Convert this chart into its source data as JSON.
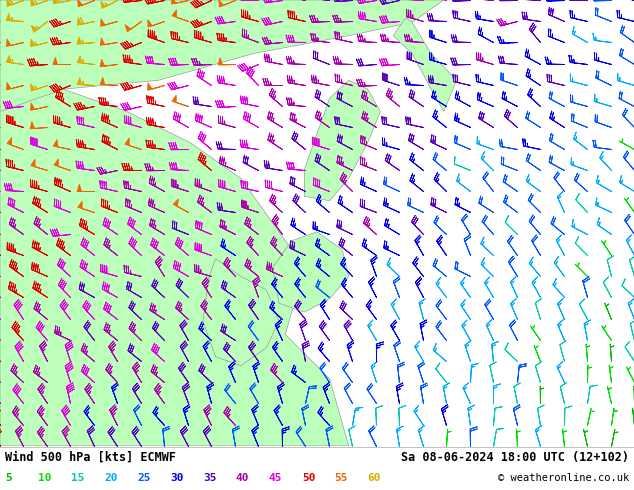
{
  "title_left": "Wind 500 hPa [kts] ECMWF",
  "title_right": "Sa 08-06-2024 18:00 UTC (12+102)",
  "copyright": "© weatheronline.co.uk",
  "legend_values": [
    5,
    10,
    15,
    20,
    25,
    30,
    35,
    40,
    45,
    50,
    55,
    60
  ],
  "legend_colors": [
    "#00bb00",
    "#00dd00",
    "#00ccaa",
    "#00aaff",
    "#0055ff",
    "#0000ee",
    "#5500bb",
    "#aa00aa",
    "#dd00dd",
    "#dd0000",
    "#ee6600",
    "#ddaa00"
  ],
  "speed_thresholds": [
    5,
    10,
    15,
    20,
    25,
    30,
    35,
    40,
    45,
    50,
    55,
    60
  ],
  "speed_colors": [
    "#00bb00",
    "#00dd00",
    "#00ccaa",
    "#00aaff",
    "#0055ff",
    "#0000ee",
    "#5500bb",
    "#aa00aa",
    "#dd00dd",
    "#dd0000",
    "#ee6600",
    "#ddaa00"
  ],
  "map_land_color": "#bbffbb",
  "map_sea_color": "#c8c8c8",
  "bottom_bar_color": "#ffffff",
  "fig_width": 6.34,
  "fig_height": 4.9,
  "dpi": 100,
  "nx": 28,
  "ny": 22
}
